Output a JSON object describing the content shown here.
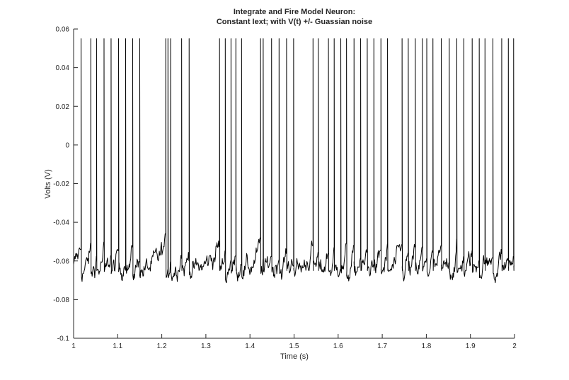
{
  "chart_data": {
    "type": "line",
    "title": [
      "Integrate and Fire Model Neuron:",
      "Constant Iext; with V(t) +/- Guassian noise"
    ],
    "xlabel": "Time (s)",
    "ylabel": "Volts (V)",
    "xlim": [
      1,
      2
    ],
    "ylim": [
      -0.1,
      0.06
    ],
    "xticks": [
      1,
      1.1,
      1.2,
      1.3,
      1.4,
      1.5,
      1.6,
      1.7,
      1.8,
      1.9,
      2
    ],
    "xtick_labels": [
      "1",
      "1.1",
      "1.2",
      "1.3",
      "1.4",
      "1.5",
      "1.6",
      "1.7",
      "1.8",
      "1.9",
      "2"
    ],
    "yticks": [
      -0.1,
      -0.08,
      -0.06,
      -0.04,
      -0.02,
      0,
      0.02,
      0.04,
      0.06
    ],
    "ytick_labels": [
      "-0.1",
      "-0.08",
      "-0.06",
      "-0.04",
      "-0.02",
      "0",
      "0.02",
      "0.04",
      "0.06"
    ],
    "grid": false,
    "legend": "none",
    "line_color": "#000000",
    "spike_peak": 0.055,
    "spike_reset": -0.065,
    "spike_threshold": -0.05,
    "spike_times": [
      1.017,
      1.039,
      1.052,
      1.069,
      1.085,
      1.102,
      1.118,
      1.134,
      1.15,
      1.209,
      1.214,
      1.22,
      1.245,
      1.262,
      1.331,
      1.344,
      1.357,
      1.368,
      1.381,
      1.424,
      1.43,
      1.449,
      1.466,
      1.483,
      1.499,
      1.543,
      1.555,
      1.578,
      1.591,
      1.606,
      1.619,
      1.636,
      1.651,
      1.666,
      1.681,
      1.697,
      1.712,
      1.745,
      1.759,
      1.775,
      1.791,
      1.801,
      1.815,
      1.834,
      1.852,
      1.869,
      1.885,
      1.904,
      1.92,
      1.933,
      1.951,
      1.971,
      1.986,
      1.998
    ]
  }
}
